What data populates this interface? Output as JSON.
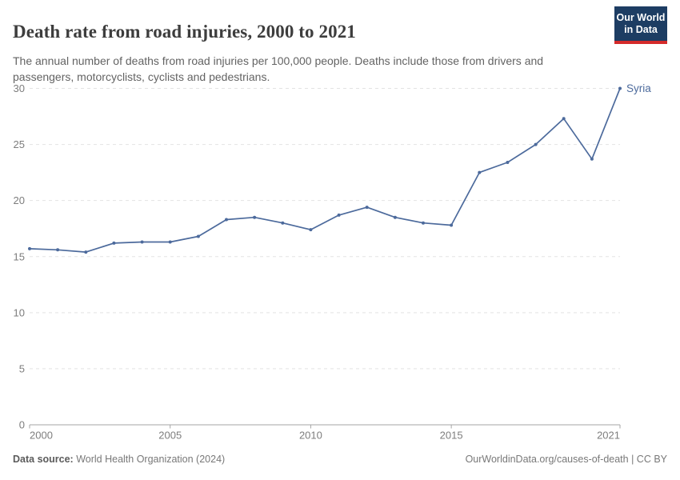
{
  "header": {
    "title": "Death rate from road injuries, 2000 to 2021",
    "subtitle": "The annual number of deaths from road injuries per 100,000 people. Deaths include those from drivers and passengers, motorcyclists, cyclists and pedestrians.",
    "logo": {
      "line1": "Our World",
      "line2": "in Data",
      "bg_color": "#1d3d63",
      "accent_color": "#d42b2b"
    }
  },
  "chart_data": {
    "type": "line",
    "title": "Death rate from road injuries, 2000 to 2021",
    "xlabel": "",
    "ylabel": "",
    "x": [
      2000,
      2001,
      2002,
      2003,
      2004,
      2005,
      2006,
      2007,
      2008,
      2009,
      2010,
      2011,
      2012,
      2013,
      2014,
      2015,
      2016,
      2017,
      2018,
      2019,
      2020,
      2021
    ],
    "series": [
      {
        "name": "Syria",
        "color": "#4c6a9c",
        "values": [
          15.7,
          15.6,
          15.4,
          16.2,
          16.3,
          16.3,
          16.8,
          18.3,
          18.5,
          18.0,
          17.4,
          18.7,
          19.4,
          18.5,
          18.0,
          17.8,
          22.5,
          23.4,
          25.0,
          27.3,
          23.7,
          30.0
        ]
      }
    ],
    "xlim": [
      2000,
      2021
    ],
    "ylim": [
      0,
      30
    ],
    "xticks": [
      2000,
      2005,
      2010,
      2015,
      2021
    ],
    "yticks": [
      0,
      5,
      10,
      15,
      20,
      25,
      30
    ],
    "grid": "horizontal-dashed",
    "legend": "end-of-line-label",
    "grid_color": "#e3e3e3",
    "axis_color": "#a5a5a5",
    "tick_label_color": "#7d7d7d"
  },
  "footer": {
    "source_label": "Data source:",
    "source_value": " World Health Organization (2024)",
    "link": "OurWorldinData.org/causes-of-death | CC BY"
  }
}
